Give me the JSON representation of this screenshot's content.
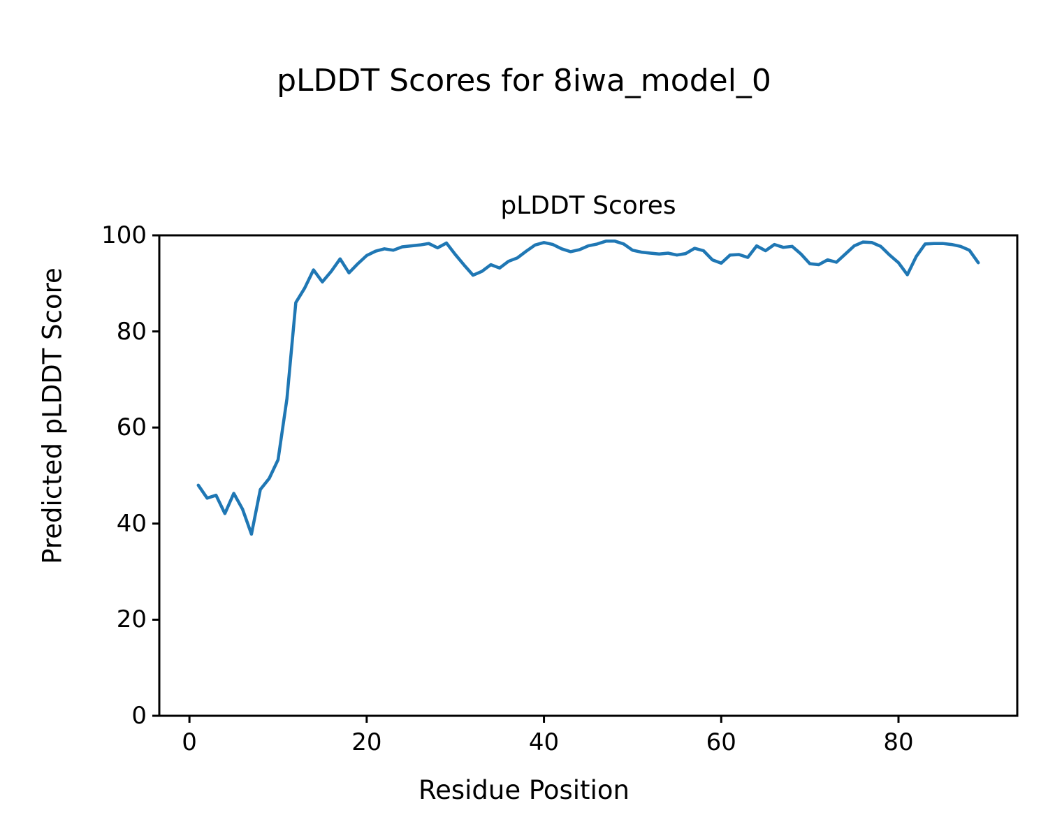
{
  "figure_title": "pLDDT Scores for 8iwa_model_0",
  "chart_data": {
    "type": "line",
    "title": "pLDDT Scores",
    "xlabel": "Residue Position",
    "ylabel": "Predicted pLDDT Score",
    "xlim": [
      -3.4,
      93.4
    ],
    "ylim": [
      0,
      100
    ],
    "x_ticks": [
      0,
      20,
      40,
      60,
      80
    ],
    "y_ticks": [
      0,
      20,
      40,
      60,
      80,
      100
    ],
    "grid": false,
    "legend_position": "none",
    "line_color": "#1f77b4",
    "axes_color": "#000000",
    "series_name": "pLDDT",
    "x": [
      1,
      2,
      3,
      4,
      5,
      6,
      7,
      8,
      9,
      10,
      11,
      12,
      13,
      14,
      15,
      16,
      17,
      18,
      19,
      20,
      21,
      22,
      23,
      24,
      25,
      26,
      27,
      28,
      29,
      30,
      31,
      32,
      33,
      34,
      35,
      36,
      37,
      38,
      39,
      40,
      41,
      42,
      43,
      44,
      45,
      46,
      47,
      48,
      49,
      50,
      51,
      52,
      53,
      54,
      55,
      56,
      57,
      58,
      59,
      60,
      61,
      62,
      63,
      64,
      65,
      66,
      67,
      68,
      69,
      70,
      71,
      72,
      73,
      74,
      75,
      76,
      77,
      78,
      79,
      80,
      81,
      82,
      83,
      84,
      85,
      86,
      87,
      88,
      89
    ],
    "y": [
      48.0,
      45.3,
      45.9,
      42.1,
      46.3,
      43.0,
      37.8,
      47.1,
      49.4,
      53.3,
      66.0,
      86.0,
      89.0,
      92.8,
      90.3,
      92.5,
      95.1,
      92.2,
      94.1,
      95.8,
      96.7,
      97.2,
      96.9,
      97.6,
      97.8,
      98.0,
      98.3,
      97.4,
      98.4,
      96.0,
      93.8,
      91.7,
      92.5,
      93.9,
      93.2,
      94.6,
      95.3,
      96.7,
      98.0,
      98.5,
      98.1,
      97.2,
      96.6,
      97.0,
      97.8,
      98.2,
      98.8,
      98.8,
      98.2,
      96.9,
      96.5,
      96.3,
      96.1,
      96.3,
      95.9,
      96.2,
      97.3,
      96.8,
      94.9,
      94.2,
      95.9,
      96.0,
      95.4,
      97.8,
      96.8,
      98.1,
      97.5,
      97.7,
      96.1,
      94.1,
      93.9,
      94.9,
      94.4,
      96.1,
      97.8,
      98.6,
      98.5,
      97.7,
      95.9,
      94.3,
      91.8,
      95.6,
      98.2,
      98.3,
      98.3,
      98.1,
      97.7,
      96.9,
      94.3
    ]
  }
}
